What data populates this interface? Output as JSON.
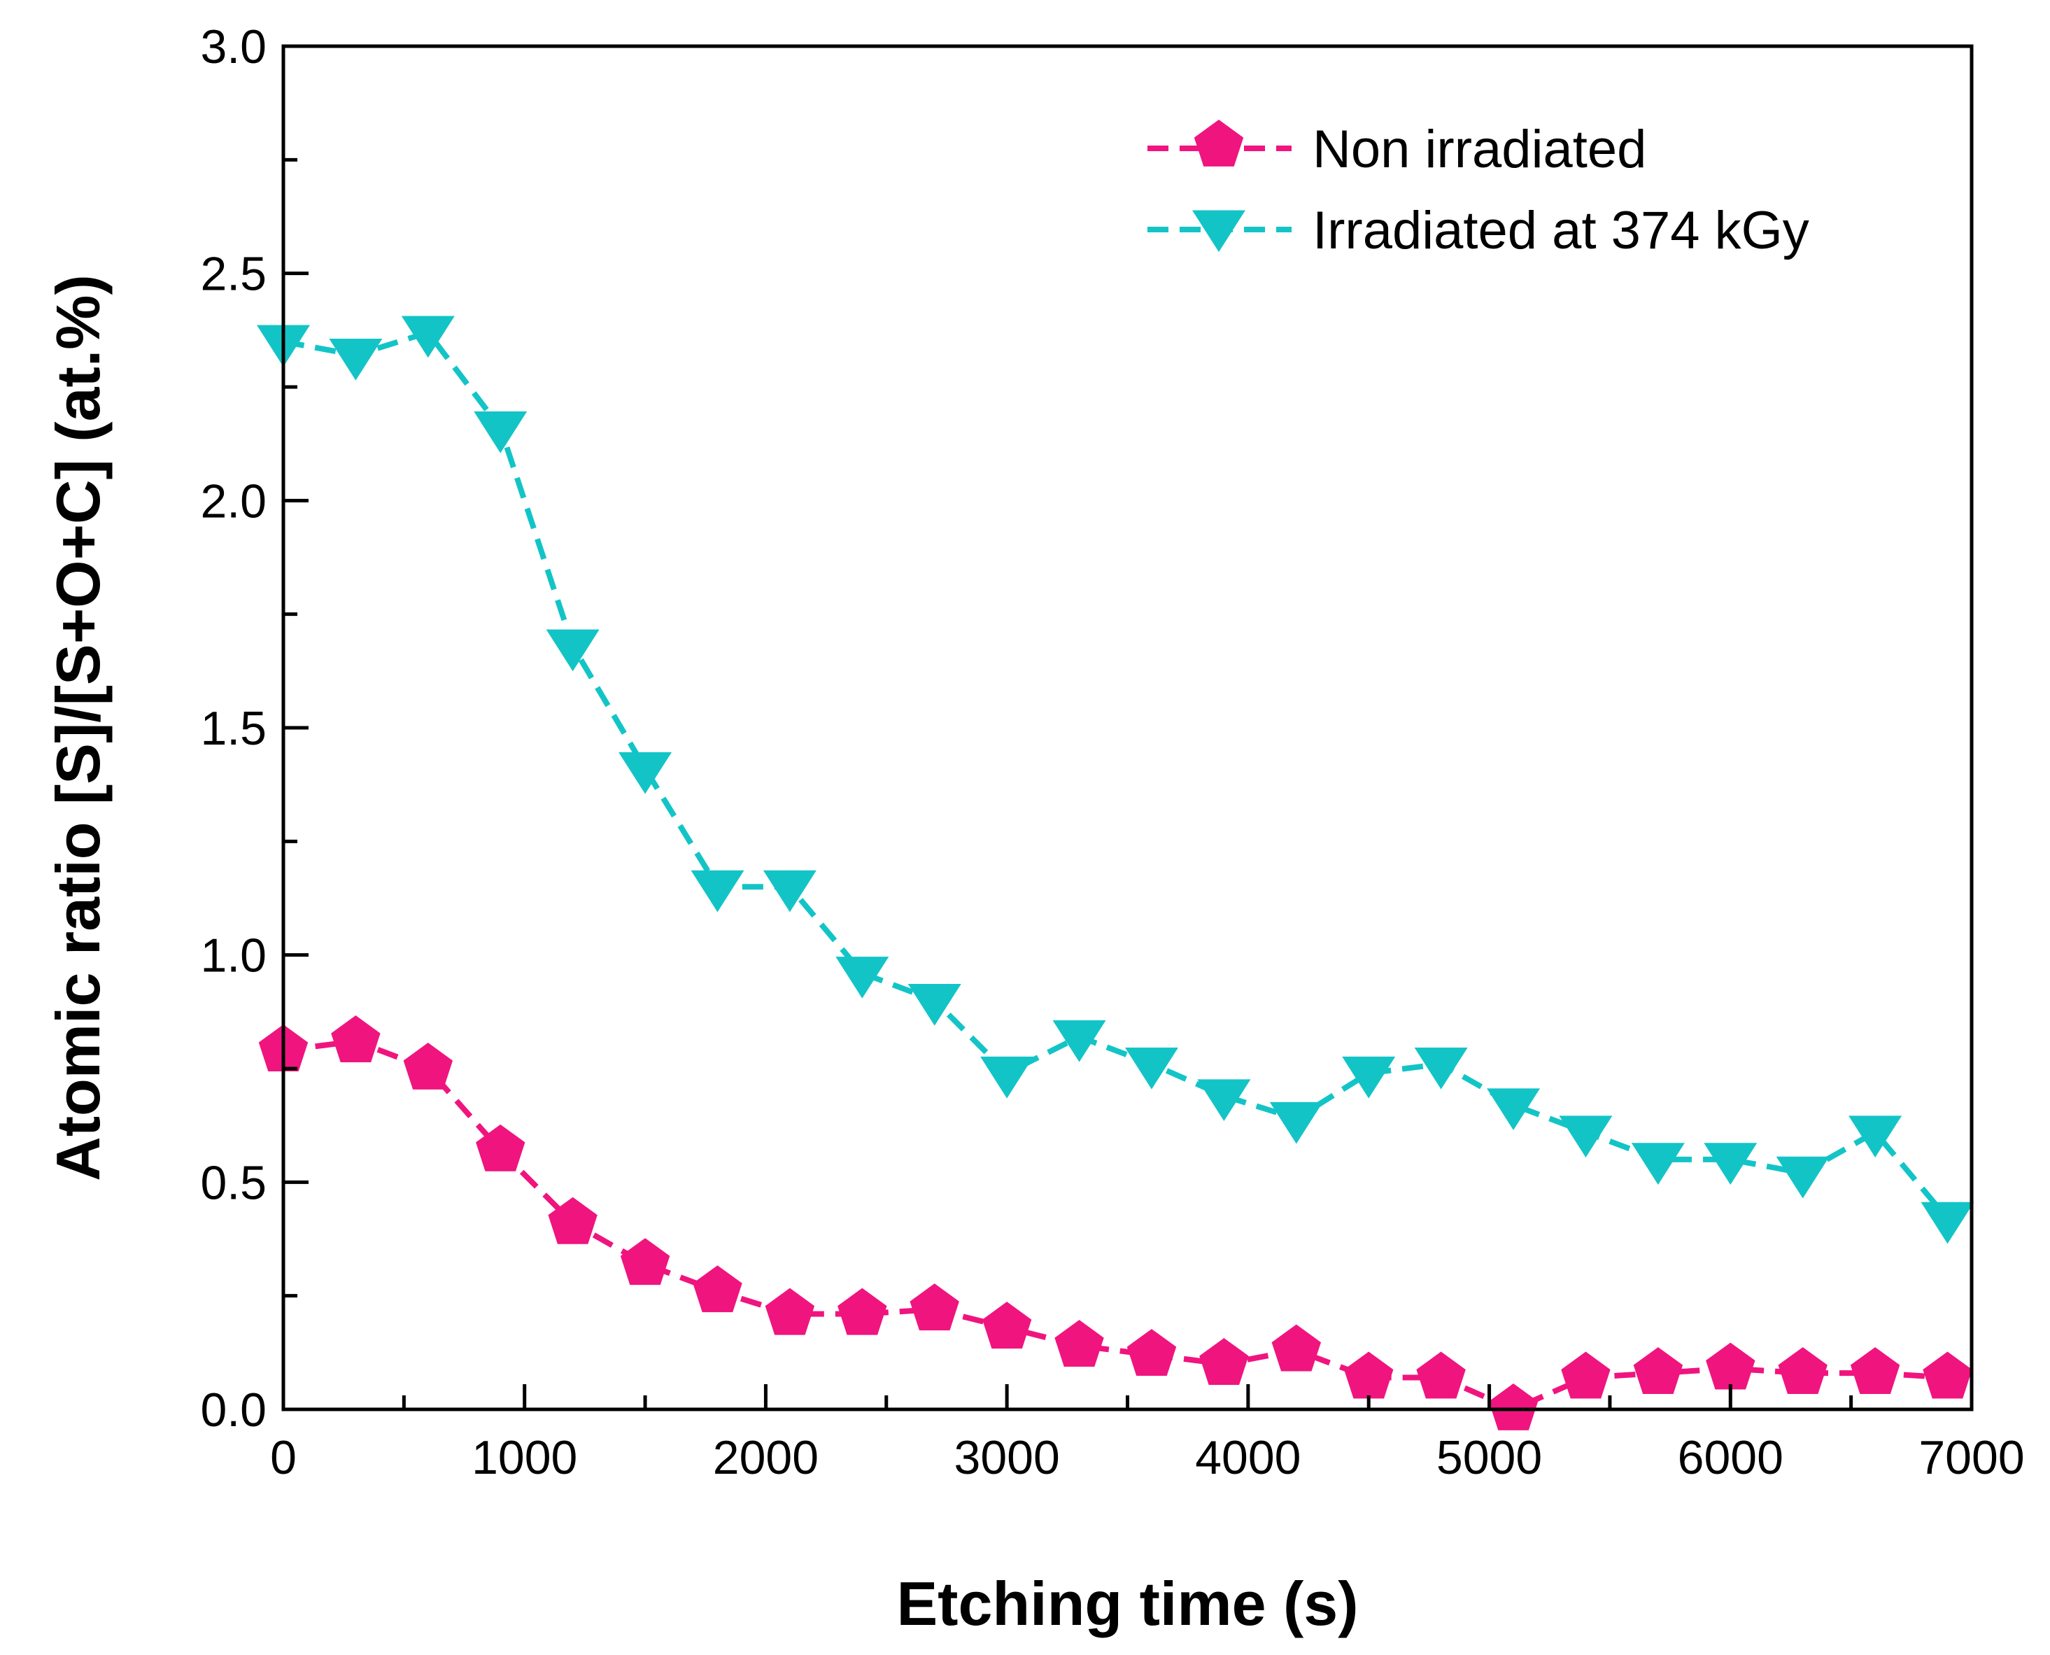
{
  "chart_data": {
    "type": "line",
    "title": "",
    "xlabel": "Etching time (s)",
    "ylabel": "Atomic ratio [S]/[S+O+C] (at.%)",
    "xlim": [
      0,
      7000
    ],
    "ylim": [
      0,
      3.0
    ],
    "x_ticks": [
      0,
      1000,
      2000,
      3000,
      4000,
      5000,
      6000,
      7000
    ],
    "x_tick_labels": [
      "0",
      "1000",
      "2000",
      "3000",
      "4000",
      "5000",
      "6000",
      "7000"
    ],
    "y_ticks": [
      0,
      0.5,
      1.0,
      1.5,
      2.0,
      2.5,
      3.0
    ],
    "y_tick_labels": [
      "0.0",
      "0.5",
      "1.0",
      "1.5",
      "2.0",
      "2.5",
      "3.0"
    ],
    "grid": false,
    "legend_position": "top-right",
    "x": [
      0,
      300,
      600,
      900,
      1200,
      1500,
      1800,
      2100,
      2400,
      2700,
      3000,
      3300,
      3600,
      3900,
      4200,
      4500,
      4800,
      5100,
      5400,
      5700,
      6000,
      6300,
      6600,
      6900
    ],
    "series": [
      {
        "name": "Non irradiated",
        "color": "#f0147f",
        "marker": "pentagon",
        "line": "dashed",
        "values": [
          0.79,
          0.81,
          0.75,
          0.57,
          0.41,
          0.32,
          0.26,
          0.21,
          0.21,
          0.22,
          0.18,
          0.14,
          0.12,
          0.1,
          0.13,
          0.07,
          0.07,
          0.0,
          0.07,
          0.08,
          0.09,
          0.08,
          0.08,
          0.07
        ]
      },
      {
        "name": "Irradiated at 374 kGy",
        "color": "#13c4c7",
        "marker": "triangle-down",
        "line": "dashed",
        "values": [
          2.35,
          2.32,
          2.37,
          2.16,
          1.68,
          1.41,
          1.15,
          1.15,
          0.96,
          0.9,
          0.74,
          0.82,
          0.76,
          0.69,
          0.64,
          0.74,
          0.76,
          0.67,
          0.61,
          0.55,
          0.55,
          0.52,
          0.61,
          0.42
        ]
      }
    ]
  }
}
